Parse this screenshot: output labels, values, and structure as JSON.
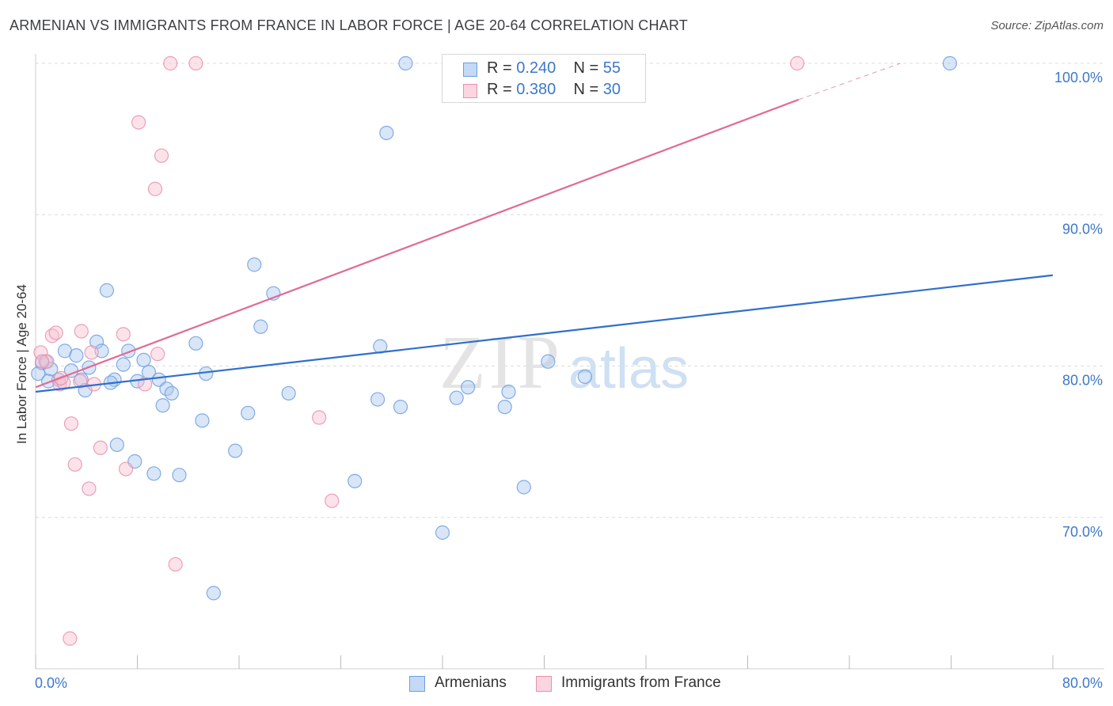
{
  "header": {
    "title": "ARMENIAN VS IMMIGRANTS FROM FRANCE IN LABOR FORCE | AGE 20-64 CORRELATION CHART",
    "source": "Source: ZipAtlas.com"
  },
  "watermark": {
    "zip": "ZIP",
    "atlas": "atlas"
  },
  "stats_legend": [
    {
      "r_label": "R = ",
      "r_value": "0.240",
      "n_label": "N = ",
      "n_value": "55",
      "color": "#a8c8f0",
      "border": "#6d9fe0"
    },
    {
      "r_label": "R = ",
      "r_value": "0.380",
      "n_label": "N = ",
      "n_value": "30",
      "color": "#f8c0d0",
      "border": "#e891ab"
    }
  ],
  "chart_data": {
    "type": "scatter",
    "title": "ARMENIAN VS IMMIGRANTS FROM FRANCE IN LABOR FORCE | AGE 20-64 CORRELATION CHART",
    "xlabel": "",
    "ylabel": "In Labor Force | Age 20-64",
    "xlim": [
      0,
      80
    ],
    "ylim": [
      60,
      100
    ],
    "x_tick_labels": [
      "0.0%",
      "80.0%"
    ],
    "y_ticks": [
      70,
      80,
      90,
      100
    ],
    "y_tick_labels": [
      "70.0%",
      "80.0%",
      "90.0%",
      "100.0%"
    ],
    "grid": "horizontal dashed",
    "legend_position": "bottom-center",
    "series": [
      {
        "name": "Armenians",
        "color": "#6d9fe0",
        "fill": "#a8c8f0",
        "line_color": "#2f6fce",
        "trend": {
          "x": [
            0,
            80
          ],
          "y": [
            78.3,
            86.0
          ]
        },
        "points": [
          [
            0.5,
            80.2
          ],
          [
            0.8,
            80.3
          ],
          [
            1.2,
            79.8
          ],
          [
            1.8,
            79.1
          ],
          [
            2.3,
            81.0
          ],
          [
            2.8,
            79.7
          ],
          [
            3.2,
            80.7
          ],
          [
            3.6,
            79.1
          ],
          [
            3.9,
            78.4
          ],
          [
            4.2,
            79.9
          ],
          [
            4.8,
            81.6
          ],
          [
            5.2,
            81.0
          ],
          [
            5.6,
            85.0
          ],
          [
            6.2,
            79.1
          ],
          [
            6.4,
            74.8
          ],
          [
            6.9,
            80.1
          ],
          [
            7.3,
            81.0
          ],
          [
            7.8,
            73.7
          ],
          [
            8.5,
            80.4
          ],
          [
            8.9,
            79.6
          ],
          [
            9.3,
            72.9
          ],
          [
            9.7,
            79.1
          ],
          [
            10.0,
            77.4
          ],
          [
            10.3,
            78.5
          ],
          [
            10.7,
            78.2
          ],
          [
            11.3,
            72.8
          ],
          [
            12.6,
            81.5
          ],
          [
            13.1,
            76.4
          ],
          [
            13.4,
            79.5
          ],
          [
            14.0,
            65.0
          ],
          [
            15.7,
            74.4
          ],
          [
            16.7,
            76.9
          ],
          [
            17.2,
            86.7
          ],
          [
            17.7,
            82.6
          ],
          [
            18.7,
            84.8
          ],
          [
            19.9,
            78.2
          ],
          [
            25.1,
            72.4
          ],
          [
            26.9,
            77.8
          ],
          [
            27.1,
            81.3
          ],
          [
            27.6,
            95.4
          ],
          [
            28.7,
            77.3
          ],
          [
            29.1,
            100.0
          ],
          [
            32.0,
            69.0
          ],
          [
            33.1,
            77.9
          ],
          [
            34.0,
            78.6
          ],
          [
            36.9,
            77.3
          ],
          [
            37.2,
            78.3
          ],
          [
            38.4,
            72.0
          ],
          [
            40.3,
            80.3
          ],
          [
            43.2,
            79.3
          ],
          [
            71.9,
            100.0
          ],
          [
            0.2,
            79.5
          ],
          [
            1.0,
            79.0
          ],
          [
            8.0,
            79.0
          ],
          [
            5.9,
            78.9
          ]
        ]
      },
      {
        "name": "Immigrants from France",
        "color": "#e891ab",
        "fill": "#f8c0d0",
        "line_color": "#e06b94",
        "trend": {
          "x": [
            0,
            60
          ],
          "y": [
            78.6,
            97.6
          ]
        },
        "trend_dashed": {
          "x": [
            60,
            68
          ],
          "y": [
            97.6,
            100.0
          ]
        },
        "points": [
          [
            0.4,
            80.9
          ],
          [
            0.9,
            80.3
          ],
          [
            1.3,
            82.0
          ],
          [
            1.6,
            82.2
          ],
          [
            1.9,
            78.8
          ],
          [
            2.2,
            78.9
          ],
          [
            2.8,
            76.2
          ],
          [
            3.1,
            73.5
          ],
          [
            3.6,
            82.3
          ],
          [
            4.2,
            71.9
          ],
          [
            4.4,
            80.9
          ],
          [
            4.6,
            78.8
          ],
          [
            5.1,
            74.6
          ],
          [
            6.9,
            82.1
          ],
          [
            7.1,
            73.2
          ],
          [
            8.1,
            96.1
          ],
          [
            8.6,
            78.8
          ],
          [
            9.4,
            91.7
          ],
          [
            9.6,
            80.8
          ],
          [
            9.9,
            93.9
          ],
          [
            10.6,
            100.0
          ],
          [
            11.0,
            66.9
          ],
          [
            12.6,
            100.0
          ],
          [
            22.3,
            76.6
          ],
          [
            23.3,
            71.1
          ],
          [
            59.9,
            100.0
          ],
          [
            2.7,
            62.0
          ],
          [
            0.5,
            80.3
          ],
          [
            3.5,
            79.0
          ],
          [
            2.0,
            79.2
          ]
        ]
      }
    ]
  }
}
